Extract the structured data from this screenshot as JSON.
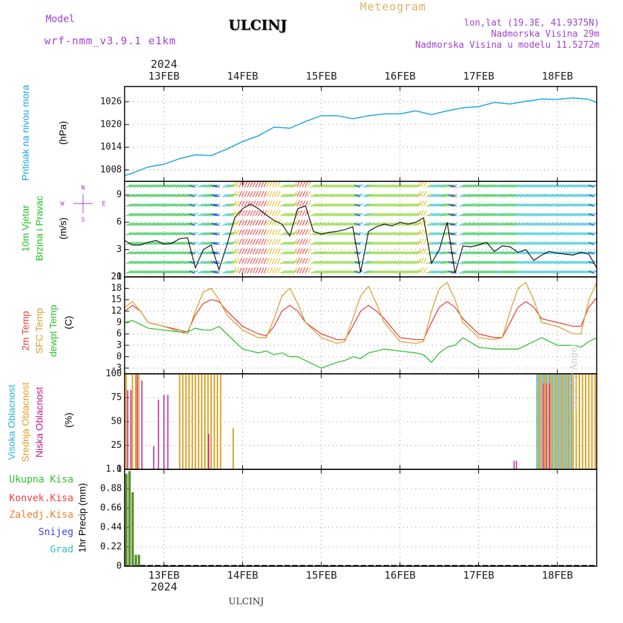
{
  "header": {
    "model_label": "Model",
    "model_name": "wrf-nmm_v3.9.1 e1km",
    "station": "ULCINJ",
    "meteogram": "Meteogram",
    "lonlat": "lon,lat (19.3E, 41.9375N)",
    "altitude": "Nadmorska Visina 29m",
    "model_altitude": "Nadmorska Visina u modelu 11.5272m",
    "credit": "made by Angel",
    "footer_station": "ULCINJ"
  },
  "colors": {
    "pressure": "#1aa3e0",
    "temp2m": "#e8403a",
    "sfc": "#d9a030",
    "dewpt": "#2cc02c",
    "high_cloud": "#2ab0d8",
    "mid_cloud": "#e0a020",
    "low_cloud": "#c01890",
    "precip_total": "#5a9030",
    "model_text": "#a040d0",
    "meteogram_text": "#e0b060"
  },
  "time_axis": {
    "year": "2024",
    "days": [
      "13FEB",
      "14FEB",
      "15FEB",
      "16FEB",
      "17FEB",
      "18FEB"
    ],
    "start_day": 12.5,
    "end_day": 18.5
  },
  "chart_data": [
    {
      "type": "line",
      "panel": "pressure",
      "ylabel": [
        "Pritisak na nivou mora",
        "(hPa)"
      ],
      "yticks": [
        "1008",
        "1014",
        "1020",
        "1026"
      ],
      "ylim": [
        1005,
        1030
      ],
      "series": [
        {
          "x": [
            12.5,
            12.6,
            12.8,
            13.0,
            13.2,
            13.4,
            13.6,
            13.8,
            14.0,
            14.2,
            14.4,
            14.6,
            14.8,
            15.0,
            15.2,
            15.4,
            15.6,
            15.8,
            16.0,
            16.2,
            16.4,
            16.6,
            16.8,
            17.0,
            17.2,
            17.4,
            17.6,
            17.8,
            18.0,
            18.2,
            18.4,
            18.5
          ],
          "values": [
            1006.5,
            1007.2,
            1008.8,
            1009.5,
            1011.0,
            1012.0,
            1011.8,
            1013.5,
            1015.5,
            1017.0,
            1019.3,
            1019.0,
            1020.8,
            1022.3,
            1022.3,
            1021.5,
            1022.3,
            1022.8,
            1022.8,
            1023.6,
            1022.6,
            1023.6,
            1024.4,
            1024.7,
            1025.8,
            1025.4,
            1026.1,
            1026.7,
            1026.6,
            1027.0,
            1026.6,
            1025.8
          ]
        }
      ]
    },
    {
      "type": "line",
      "panel": "wind",
      "ylabel": [
        "10m Vjetar",
        "Brzina i Pravac",
        "(m/s)"
      ],
      "compass": [
        "N",
        "E",
        "S",
        "W"
      ],
      "yticks": [
        "0",
        "3",
        "6",
        "9"
      ],
      "ylim": [
        0,
        10.5
      ],
      "series": [
        {
          "name": "speed",
          "x": [
            12.5,
            12.6,
            12.7,
            12.8,
            12.9,
            13.0,
            13.1,
            13.2,
            13.3,
            13.4,
            13.5,
            13.6,
            13.7,
            13.8,
            13.9,
            14.0,
            14.1,
            14.2,
            14.3,
            14.4,
            14.5,
            14.6,
            14.7,
            14.8,
            14.9,
            15.0,
            15.1,
            15.2,
            15.3,
            15.4,
            15.5,
            15.6,
            15.7,
            15.8,
            15.9,
            16.0,
            16.1,
            16.2,
            16.3,
            16.4,
            16.5,
            16.6,
            16.7,
            16.8,
            16.9,
            17.0,
            17.1,
            17.2,
            17.3,
            17.4,
            17.5,
            17.6,
            17.7,
            17.8,
            17.9,
            18.0,
            18.1,
            18.2,
            18.3,
            18.4,
            18.5
          ],
          "values": [
            4.0,
            3.5,
            3.5,
            3.8,
            4.0,
            3.6,
            3.7,
            4.2,
            4.3,
            1.0,
            3.0,
            3.5,
            0.8,
            3.5,
            6.5,
            7.5,
            8.0,
            7.5,
            6.8,
            6.2,
            5.8,
            4.5,
            7.5,
            7.8,
            5.0,
            4.7,
            4.9,
            5.0,
            5.2,
            5.5,
            0.5,
            5.0,
            5.5,
            5.8,
            5.6,
            6.0,
            5.8,
            6.0,
            6.5,
            1.5,
            3.0,
            6.0,
            0.4,
            3.4,
            3.3,
            3.5,
            3.8,
            2.8,
            3.4,
            3.3,
            2.7,
            3.0,
            1.8,
            2.4,
            2.8,
            2.6,
            2.5,
            2.4,
            2.7,
            2.5,
            1.0
          ]
        }
      ]
    },
    {
      "type": "line",
      "panel": "temperature",
      "ylabel": [
        "2m Temp",
        "SFC Temp",
        "dewpt Temp",
        "(C)"
      ],
      "yticks": [
        "-3",
        "0",
        "3",
        "6",
        "9",
        "12",
        "15",
        "18",
        "21"
      ],
      "ylim": [
        -4.5,
        21
      ],
      "series": [
        {
          "name": "2m Temp",
          "x": [
            12.5,
            12.6,
            12.7,
            12.8,
            13.0,
            13.2,
            13.3,
            13.4,
            13.5,
            13.6,
            13.7,
            13.8,
            14.0,
            14.2,
            14.3,
            14.4,
            14.5,
            14.6,
            14.7,
            14.8,
            15.0,
            15.2,
            15.3,
            15.4,
            15.5,
            15.6,
            15.7,
            15.8,
            16.0,
            16.2,
            16.3,
            16.4,
            16.5,
            16.6,
            16.7,
            16.8,
            17.0,
            17.2,
            17.3,
            17.4,
            17.5,
            17.6,
            17.7,
            17.8,
            18.0,
            18.2,
            18.3,
            18.4,
            18.5
          ],
          "values": [
            12,
            13.5,
            12,
            9,
            8,
            7,
            6.5,
            11,
            14,
            15,
            14.5,
            12,
            8,
            6,
            5.5,
            8,
            12,
            13.5,
            12,
            9,
            6,
            4.5,
            4.5,
            8,
            12,
            13.5,
            12,
            10,
            5,
            4.5,
            4.5,
            9,
            13,
            14.5,
            13,
            10,
            6,
            5,
            5,
            9,
            13,
            14.5,
            13,
            10,
            9,
            8,
            8,
            13,
            15.5
          ]
        },
        {
          "name": "SFC Temp",
          "x": [
            12.5,
            12.6,
            12.7,
            12.8,
            13.0,
            13.2,
            13.3,
            13.4,
            13.5,
            13.6,
            13.7,
            13.8,
            14.0,
            14.2,
            14.3,
            14.4,
            14.5,
            14.6,
            14.7,
            14.8,
            15.0,
            15.2,
            15.3,
            15.4,
            15.5,
            15.6,
            15.7,
            15.8,
            16.0,
            16.2,
            16.3,
            16.4,
            16.5,
            16.6,
            16.7,
            16.8,
            17.0,
            17.2,
            17.3,
            17.4,
            17.5,
            17.6,
            17.7,
            17.8,
            18.0,
            18.2,
            18.3,
            18.4,
            18.5
          ],
          "values": [
            13,
            14.5,
            12,
            9,
            8,
            6.5,
            6,
            12,
            17,
            18,
            15,
            11,
            7,
            5,
            5,
            10,
            16,
            18,
            14,
            9,
            5,
            3.5,
            4,
            10,
            16,
            18.5,
            14,
            9,
            4,
            3.5,
            4,
            12,
            18,
            19.5,
            15,
            9,
            5,
            4.5,
            5,
            12,
            18,
            19.5,
            15,
            9,
            8,
            6,
            6,
            15,
            19.5
          ]
        },
        {
          "name": "dewpt Temp",
          "x": [
            12.5,
            12.6,
            12.7,
            12.8,
            13.0,
            13.2,
            13.3,
            13.4,
            13.5,
            13.6,
            13.7,
            13.8,
            14.0,
            14.2,
            14.3,
            14.4,
            14.5,
            14.6,
            14.7,
            14.8,
            15.0,
            15.2,
            15.3,
            15.4,
            15.5,
            15.6,
            15.7,
            15.8,
            16.0,
            16.2,
            16.3,
            16.4,
            16.5,
            16.6,
            16.7,
            16.8,
            17.0,
            17.2,
            17.3,
            17.4,
            17.5,
            17.6,
            17.7,
            17.8,
            18.0,
            18.2,
            18.3,
            18.4,
            18.5
          ],
          "values": [
            9,
            9.5,
            8.5,
            7.5,
            7,
            6.5,
            6.5,
            7.5,
            7,
            7,
            8,
            6,
            2,
            1,
            1.5,
            0.5,
            1,
            0,
            0,
            -1,
            -3,
            -1.5,
            -1,
            0,
            -0.5,
            1,
            1.5,
            2,
            1.5,
            1,
            0.5,
            -1.5,
            1,
            2.5,
            3,
            5,
            2.5,
            2,
            2,
            2,
            2,
            3,
            4,
            5,
            3,
            3,
            2.5,
            4,
            5
          ]
        }
      ]
    },
    {
      "type": "bar",
      "panel": "cloud",
      "ylabel": [
        "Visoka Oblacnost",
        "Srednja Oblacnost",
        "Niska Oblacnost",
        "(%)"
      ],
      "yticks": [
        "0",
        "25",
        "50",
        "75",
        "100"
      ],
      "ylim": [
        0,
        100
      ],
      "series": [
        {
          "name": "Visoka Oblacnost",
          "x": [
            13.28,
            13.32,
            13.36,
            13.4,
            13.44,
            13.48,
            13.52,
            13.56,
            13.6,
            17.74,
            17.78,
            17.82,
            17.86,
            17.9,
            17.94,
            17.98,
            18.02,
            18.06,
            18.1,
            18.14,
            18.18
          ],
          "values": [
            100,
            100,
            100,
            100,
            100,
            100,
            100,
            100,
            100,
            100,
            100,
            100,
            100,
            100,
            100,
            100,
            100,
            100,
            100,
            100,
            100
          ]
        },
        {
          "name": "Srednja Oblacnost",
          "x": [
            12.52,
            12.6,
            12.64,
            12.68,
            13.2,
            13.24,
            13.28,
            13.32,
            13.36,
            13.4,
            13.44,
            13.48,
            13.52,
            13.56,
            13.6,
            13.64,
            13.68,
            13.72,
            13.88,
            17.76,
            17.8,
            17.84,
            17.88,
            17.92,
            17.96,
            18.0,
            18.04,
            18.08,
            18.12,
            18.16,
            18.2,
            18.24,
            18.28,
            18.32,
            18.36,
            18.4,
            18.44,
            18.48
          ],
          "values": [
            100,
            100,
            100,
            100,
            100,
            100,
            100,
            100,
            100,
            100,
            100,
            100,
            100,
            100,
            100,
            100,
            100,
            100,
            43,
            100,
            100,
            100,
            100,
            100,
            100,
            100,
            100,
            100,
            100,
            100,
            100,
            100,
            100,
            100,
            100,
            100,
            100,
            100
          ]
        },
        {
          "name": "Niska Oblacnost",
          "x": [
            12.54,
            12.58,
            12.66,
            12.72,
            12.87,
            12.93,
            13.0,
            13.05,
            13.57,
            17.45,
            17.48,
            17.82,
            17.86,
            17.9
          ],
          "values": [
            83,
            83,
            100,
            93,
            24,
            73,
            78,
            78,
            37,
            9,
            9,
            90,
            90,
            90
          ]
        }
      ]
    },
    {
      "type": "bar",
      "panel": "precipitation",
      "ylabel": [
        "1hr Precip (mm)"
      ],
      "legend": [
        "Ukupna Kisa",
        "Konvek.Kisa",
        "Zaledj.Kisa",
        "Snijeg",
        "Grad"
      ],
      "legend_colors": [
        "#30c030",
        "#f04040",
        "#f08030",
        "#4040f0",
        "#30c0c0"
      ],
      "yticks": [
        "0",
        "0.22",
        "0.44",
        "0.66",
        "0.88",
        "1.1"
      ],
      "ylim": [
        0,
        1.1
      ],
      "series": [
        {
          "name": "Ukupna Kisa",
          "x": [
            12.52,
            12.56,
            12.6,
            12.64,
            12.68
          ],
          "values": [
            1.05,
            1.08,
            0.84,
            0.13,
            0.13
          ]
        }
      ]
    }
  ]
}
